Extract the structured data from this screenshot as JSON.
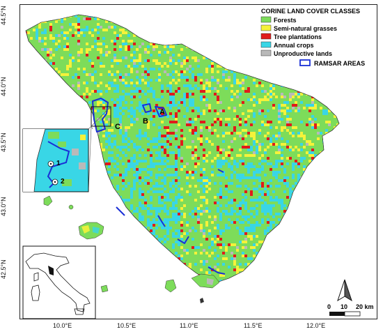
{
  "legend": {
    "title": "CORINE LAND COVER CLASSES",
    "classes": [
      {
        "name": "Forests",
        "color": "#7ddc5a"
      },
      {
        "name": "Semi-natural grasses",
        "color": "#f5f23a"
      },
      {
        "name": "Tree plantations",
        "color": "#e01b1b"
      },
      {
        "name": "Annual crops",
        "color": "#39d6e6"
      },
      {
        "name": "Unproductive lands",
        "color": "#b9b9b9"
      }
    ],
    "ramsar": {
      "label": "RAMSAR  AREAS",
      "color": "#1a2fd6"
    }
  },
  "latitude_labels": [
    "44.5°N",
    "44.0°N",
    "43.5°N",
    "43.0°N",
    "42.5°N"
  ],
  "longitude_labels": [
    "10.0°E",
    "10.5°E",
    "11.0°E",
    "11.5°E",
    "12.0°E"
  ],
  "site_labels": [
    "A",
    "B",
    "C"
  ],
  "inset_points": [
    "1",
    "2"
  ],
  "scale_bar": {
    "labels": [
      "0",
      "10",
      "20 km"
    ]
  },
  "north_arrow": "north-arrow-icon"
}
